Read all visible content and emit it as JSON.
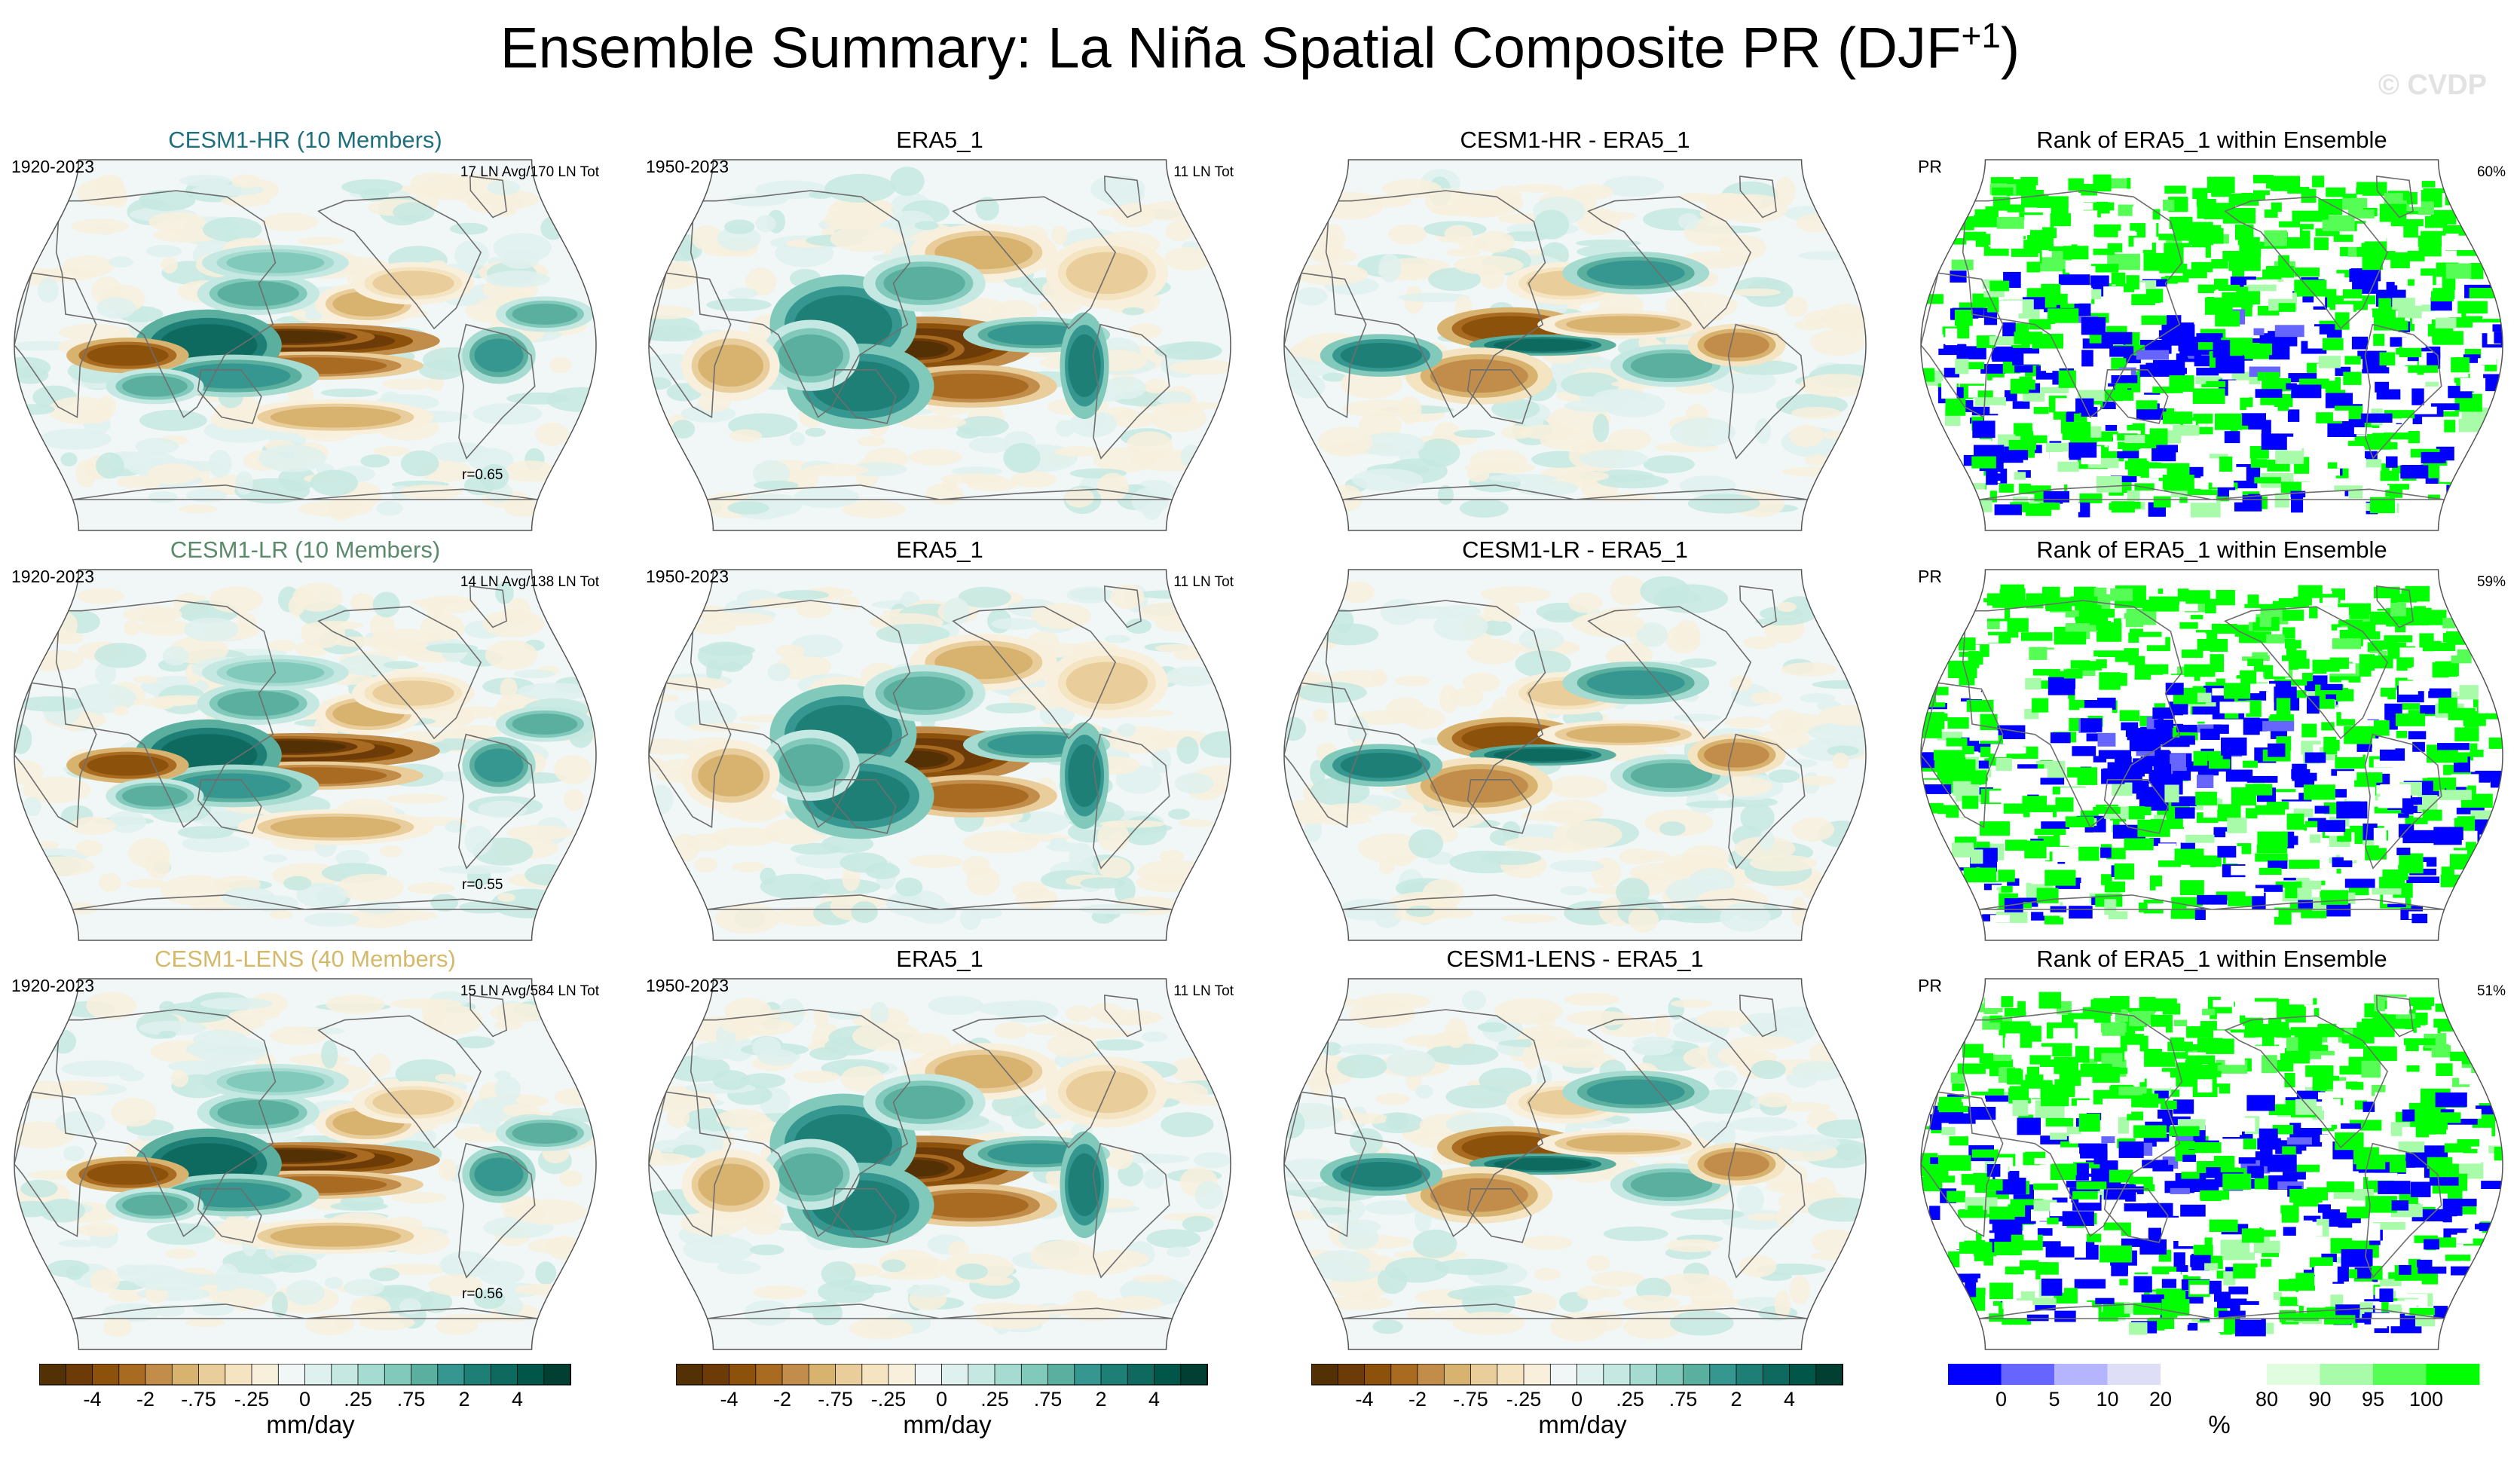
{
  "title": {
    "main": "Ensemble Summary: La Niña Spatial Composite PR (DJF",
    "superscript": "+1",
    "close": ")"
  },
  "watermark": "© CVDP",
  "colors": {
    "diverging": [
      "#543005",
      "#6d3b08",
      "#8c510a",
      "#a96b22",
      "#c28d4b",
      "#d8b26f",
      "#e9cd9b",
      "#f4e4c1",
      "#f8f0dd",
      "#f1f6f6",
      "#dff1ee",
      "#c5e9e2",
      "#a6dbd1",
      "#80c9bb",
      "#5aaf9f",
      "#35978f",
      "#1e7f76",
      "#0e6a5f",
      "#01564a",
      "#013f33"
    ],
    "rank": [
      "#0000ff",
      "#6666ff",
      "#b5b5ff",
      "#dedef7",
      "#ffffff",
      "#ffffff",
      "#e0fde0",
      "#a8fba8",
      "#55fd55",
      "#00ff00"
    ],
    "coastline": "#6e6e6e",
    "title_hr": "#1f6f7d",
    "title_lr": "#5a8a6a",
    "title_lens": "#d4b96a"
  },
  "rows": [
    {
      "model": {
        "title": "CESM1-HR (10 Members)",
        "title_color_key": "title_hr",
        "left": "1920-2023",
        "right": "17 LN Avg/170 LN Tot",
        "corr": "r=0.65"
      },
      "obs": {
        "title": "ERA5_1",
        "left": "1950-2023",
        "right": "11 LN Tot"
      },
      "diff": {
        "title": "CESM1-HR - ERA5_1"
      },
      "rank": {
        "title": "Rank of ERA5_1 within Ensemble",
        "left": "PR",
        "right": "60%"
      }
    },
    {
      "model": {
        "title": "CESM1-LR (10 Members)",
        "title_color_key": "title_lr",
        "left": "1920-2023",
        "right": "14 LN Avg/138 LN Tot",
        "corr": "r=0.55"
      },
      "obs": {
        "title": "ERA5_1",
        "left": "1950-2023",
        "right": "11 LN Tot"
      },
      "diff": {
        "title": "CESM1-LR - ERA5_1"
      },
      "rank": {
        "title": "Rank of ERA5_1 within Ensemble",
        "left": "PR",
        "right": "59%"
      }
    },
    {
      "model": {
        "title": "CESM1-LENS (40 Members)",
        "title_color_key": "title_lens",
        "left": "1920-2023",
        "right": "15 LN Avg/584 LN Tot",
        "corr": "r=0.56"
      },
      "obs": {
        "title": "ERA5_1",
        "left": "1950-2023",
        "right": "11 LN Tot"
      },
      "diff": {
        "title": "CESM1-LENS - ERA5_1"
      },
      "rank": {
        "title": "Rank of ERA5_1 within Ensemble",
        "left": "PR",
        "right": "51%"
      }
    }
  ],
  "colorbars": [
    {
      "type": "diverging",
      "ticks": [
        "-4",
        "-2",
        "-.75",
        "-.25",
        "0",
        ".25",
        ".75",
        "2",
        "4"
      ],
      "label": "mm/day"
    },
    {
      "type": "diverging",
      "ticks": [
        "-4",
        "-2",
        "-.75",
        "-.25",
        "0",
        ".25",
        ".75",
        "2",
        "4"
      ],
      "label": "mm/day"
    },
    {
      "type": "diverging",
      "ticks": [
        "-4",
        "-2",
        "-.75",
        "-.25",
        "0",
        ".25",
        ".75",
        "2",
        "4"
      ],
      "label": "mm/day"
    },
    {
      "type": "rank",
      "ticks": [
        "0",
        "5",
        "10",
        "20",
        "80",
        "90",
        "95",
        "100"
      ],
      "label": "%"
    }
  ],
  "chart_data": {
    "type": "heatmap",
    "title": "Ensemble Summary: La Niña Spatial Composite PR (DJF+1)",
    "projection": "Robinson (global)",
    "units": "mm/day",
    "contour_levels": [
      -5,
      -4,
      -3,
      -2,
      -1,
      -0.75,
      -0.5,
      -0.25,
      -0.1,
      0,
      0.1,
      0.25,
      0.5,
      0.75,
      1,
      2,
      3,
      4,
      5
    ],
    "rank_levels_percent": [
      0,
      5,
      10,
      20,
      80,
      90,
      95,
      100
    ],
    "panels": [
      {
        "row": "CESM1-HR",
        "columns": [
          "model composite (1920-2023)",
          "ERA5_1 composite (1950-2023)",
          "CESM1-HR - ERA5_1",
          "rank of ERA5_1"
        ],
        "pattern_correlation": 0.65,
        "rank_percent": 60
      },
      {
        "row": "CESM1-LR",
        "columns": [
          "model composite (1920-2023)",
          "ERA5_1 composite (1950-2023)",
          "CESM1-LR - ERA5_1",
          "rank of ERA5_1"
        ],
        "pattern_correlation": 0.55,
        "rank_percent": 59
      },
      {
        "row": "CESM1-LENS",
        "columns": [
          "model composite (1920-2023)",
          "ERA5_1 composite (1950-2023)",
          "CESM1-LENS - ERA5_1",
          "rank of ERA5_1"
        ],
        "pattern_correlation": 0.56,
        "rank_percent": 51
      }
    ]
  }
}
